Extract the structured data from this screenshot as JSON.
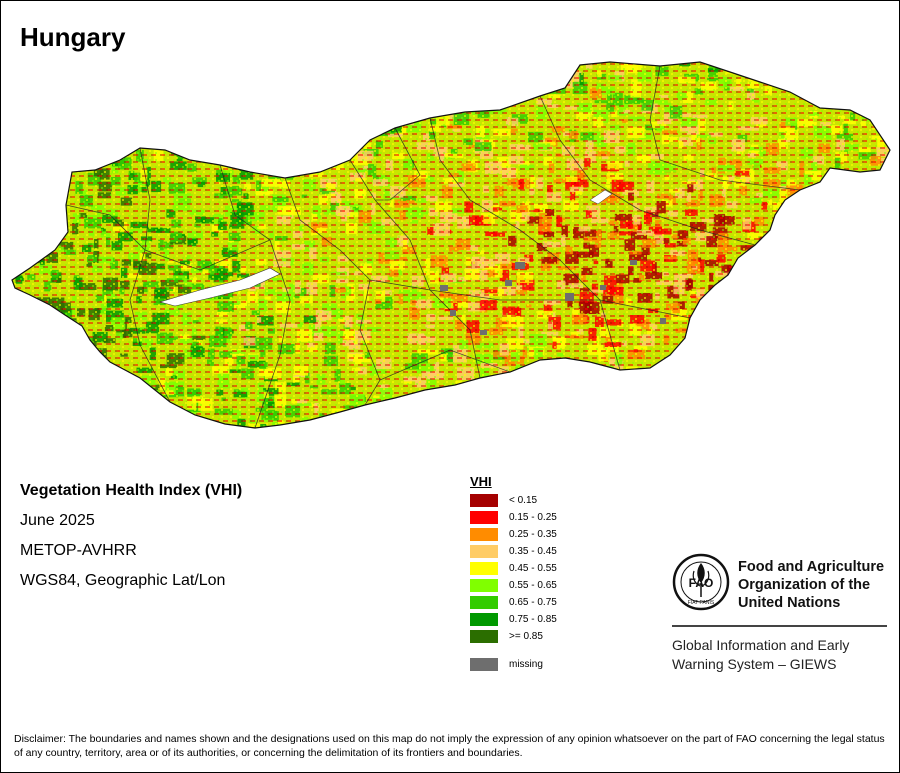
{
  "map_title": "Hungary",
  "info": {
    "index_name": "Vegetation Health Index (VHI)",
    "date": "June 2025",
    "sensor": "METOP-AVHRR",
    "projection": "WGS84, Geographic Lat/Lon"
  },
  "legend": {
    "title": "VHI",
    "classes": [
      {
        "label": "< 0.15",
        "color": "#a50000"
      },
      {
        "label": "0.15 - 0.25",
        "color": "#ff0000"
      },
      {
        "label": "0.25 - 0.35",
        "color": "#ff8c00"
      },
      {
        "label": "0.35 - 0.45",
        "color": "#ffcc66"
      },
      {
        "label": "0.45 - 0.55",
        "color": "#ffff00"
      },
      {
        "label": "0.55 - 0.65",
        "color": "#80ff00"
      },
      {
        "label": "0.65 - 0.75",
        "color": "#33cc00"
      },
      {
        "label": "0.75 - 0.85",
        "color": "#009900"
      },
      {
        "label": ">= 0.85",
        "color": "#2b6e00"
      }
    ],
    "missing": {
      "label": "missing",
      "color": "#6e6e6e"
    }
  },
  "organization": {
    "name_lines": [
      "Food and Agriculture",
      "Organization of the",
      "United Nations"
    ],
    "logo_text": "FAO",
    "logo_motto": "FIAT PANIS",
    "system_lines": [
      "Global Information and Early",
      "Warning System – GIEWS"
    ]
  },
  "disclaimer": "Disclaimer: The boundaries and names shown and the designations used on this map do not imply the expression of any opinion whatsoever on the part of FAO concerning the legal status of any country, territory, area or of its authorities, or concerning the delimitation of its frontiers and boundaries."
}
